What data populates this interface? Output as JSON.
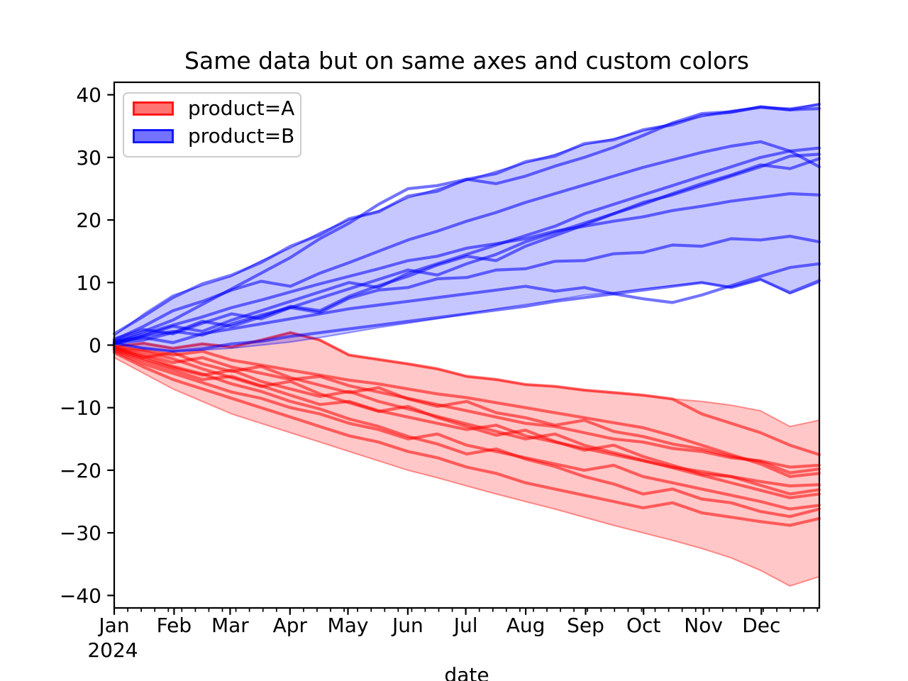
{
  "title": "Same data but on same axes and custom colors",
  "xlabel": "date",
  "legend": {
    "items": [
      {
        "label": "product=A",
        "fill_color": "rgba(255,0,0,0.55)",
        "edge_color": "rgba(255,0,0,0.8)"
      },
      {
        "label": "product=B",
        "fill_color": "rgba(0,0,255,0.55)",
        "edge_color": "rgba(0,0,255,0.8)"
      }
    ]
  },
  "axes": {
    "year_label": "2024",
    "y_ticks": [
      {
        "label": "40",
        "value": 40
      },
      {
        "label": "30",
        "value": 30
      },
      {
        "label": "20",
        "value": 20
      },
      {
        "label": "10",
        "value": 10
      },
      {
        "label": "0",
        "value": 0
      },
      {
        "label": "−10",
        "value": -10
      },
      {
        "label": "−20",
        "value": -20
      },
      {
        "label": "−30",
        "value": -30
      },
      {
        "label": "−40",
        "value": -40
      }
    ],
    "x_ticks": [
      {
        "label": "Jan",
        "day": 0
      },
      {
        "label": "Feb",
        "day": 31
      },
      {
        "label": "Mar",
        "day": 60
      },
      {
        "label": "Apr",
        "day": 91
      },
      {
        "label": "May",
        "day": 121
      },
      {
        "label": "Jun",
        "day": 152
      },
      {
        "label": "Jul",
        "day": 182
      },
      {
        "label": "Aug",
        "day": 213
      },
      {
        "label": "Sep",
        "day": 244
      },
      {
        "label": "Oct",
        "day": 274
      },
      {
        "label": "Nov",
        "day": 305
      },
      {
        "label": "Dec",
        "day": 335
      }
    ]
  },
  "chart_data": {
    "type": "line",
    "title": "Same data but on same axes and custom colors",
    "xlabel": "date",
    "ylabel": "",
    "x_unit": "months since 2024-01-01",
    "xlim": [
      0,
      12
    ],
    "ylim": [
      -42,
      42
    ],
    "grid": false,
    "legend_position": "upper left",
    "x": [
      0,
      0.5,
      1,
      1.5,
      2,
      2.5,
      3,
      3.5,
      4,
      4.5,
      5,
      5.5,
      6,
      6.5,
      7,
      7.5,
      8,
      8.5,
      9,
      9.5,
      10,
      10.5,
      11,
      11.5,
      12
    ],
    "series": [
      {
        "name": "product=A",
        "color": "#ff0000",
        "band_hi": [
          -0.2,
          0.3,
          -0.5,
          0.2,
          -0.3,
          0.8,
          2,
          0.8,
          -1.6,
          -2.3,
          -3,
          -3.8,
          -5,
          -5.5,
          -6.3,
          -6.6,
          -7.2,
          -7.6,
          -8,
          -8.6,
          -9,
          -9.6,
          -10.5,
          -13,
          -12
        ],
        "band_lo": [
          -2,
          -4.5,
          -7,
          -9,
          -11,
          -12.5,
          -14,
          -15.5,
          -17,
          -18.5,
          -20,
          -21.2,
          -22.5,
          -23.8,
          -25,
          -26.2,
          -27.5,
          -28.8,
          -30,
          -31.2,
          -32.5,
          -34,
          -36,
          -38.5,
          -37
        ],
        "lines": [
          [
            -0.2,
            0.3,
            -0.5,
            0.2,
            -0.3,
            0.8,
            2,
            0.8,
            -1.6,
            -2.3,
            -3,
            -3.8,
            -5,
            -5.5,
            -6.3,
            -6.6,
            -7.2,
            -7.6,
            -8,
            -8.6,
            -11,
            -12.5,
            -14,
            -16,
            -17.5
          ],
          [
            -0.5,
            -1.5,
            -2.8,
            -2,
            -3.5,
            -4.5,
            -5.5,
            -5,
            -6.5,
            -7.5,
            -8.5,
            -9.5,
            -10.5,
            -11.5,
            -12.5,
            -13,
            -14,
            -15,
            -15.5,
            -16.5,
            -17,
            -18,
            -18.5,
            -19.5,
            -19.2
          ],
          [
            -0.3,
            -2,
            -1.2,
            -3,
            -4.2,
            -3.4,
            -5.2,
            -6.4,
            -7.6,
            -6.8,
            -8.6,
            -9.8,
            -9,
            -10.8,
            -11.6,
            -12.8,
            -12,
            -13.8,
            -14.6,
            -15.8,
            -16.6,
            -17.8,
            -18.6,
            -20.4,
            -19.8
          ],
          [
            -0.8,
            -2.5,
            -4,
            -5.5,
            -5,
            -6.5,
            -8,
            -9.5,
            -9,
            -10.5,
            -11.5,
            -12.5,
            -13.5,
            -12.8,
            -14.5,
            -15.5,
            -16.5,
            -17.5,
            -18.5,
            -19.5,
            -20.2,
            -21,
            -21.8,
            -22.5,
            -22.3
          ],
          [
            -0.4,
            -1,
            -2.2,
            -3.8,
            -5.2,
            -6.6,
            -5.8,
            -7.8,
            -9.2,
            -10.6,
            -9.8,
            -11.6,
            -13,
            -14.4,
            -13.6,
            -15.4,
            -16.8,
            -16,
            -17.8,
            -19.2,
            -20.6,
            -21,
            -22.4,
            -23.8,
            -23.1
          ],
          [
            -1,
            -3,
            -4.5,
            -6,
            -7.5,
            -8.5,
            -10,
            -11,
            -12.5,
            -13.5,
            -15,
            -14.2,
            -16,
            -17,
            -18,
            -19,
            -20,
            -19.2,
            -21,
            -22,
            -23,
            -24,
            -25,
            -26.2,
            -25.6
          ],
          [
            -0.6,
            -1.8,
            -3.4,
            -4.6,
            -6.2,
            -7.4,
            -9,
            -10.2,
            -11.8,
            -13,
            -14.6,
            -15.8,
            -17.4,
            -16.6,
            -18.2,
            -19.4,
            -21,
            -22.2,
            -23.8,
            -23,
            -24.6,
            -25.2,
            -26.6,
            -27.4,
            -26.2
          ],
          [
            -1.2,
            -3.5,
            -5.5,
            -7,
            -8.5,
            -10,
            -11.5,
            -13,
            -14.5,
            -15.5,
            -17,
            -18,
            -19.5,
            -20.5,
            -22,
            -23,
            -24,
            -25,
            -26,
            -25.2,
            -26.8,
            -27.5,
            -28.2,
            -28.8,
            -27.7
          ],
          [
            -0.2,
            -0.8,
            -1.6,
            -1,
            -2.4,
            -3.2,
            -4,
            -4.8,
            -5.6,
            -6.2,
            -7,
            -7.8,
            -8.4,
            -9.2,
            -10,
            -10.8,
            -11.6,
            -12.4,
            -13.2,
            -14.5,
            -16,
            -17.5,
            -19,
            -21,
            -20.5
          ],
          [
            -0.7,
            -2.2,
            -3.6,
            -4.8,
            -4,
            -5.8,
            -7,
            -8.2,
            -7.4,
            -9,
            -10.2,
            -11.4,
            -12.6,
            -13.8,
            -15,
            -14.2,
            -16,
            -17.2,
            -18.4,
            -19.6,
            -20.8,
            -22,
            -23.2,
            -24.4,
            -23.8
          ]
        ]
      },
      {
        "name": "product=B",
        "color": "#0000ff",
        "band_hi": [
          1.5,
          5,
          8,
          9.5,
          11,
          13.5,
          15.5,
          18,
          20,
          21.5,
          23.5,
          25,
          26.3,
          27.8,
          29.1,
          30.5,
          32,
          33,
          34.2,
          35.5,
          36.5,
          37.5,
          38.1,
          37.9,
          38.5
        ],
        "band_lo": [
          0.3,
          -0.5,
          -1,
          -0.8,
          -0.5,
          0,
          0.5,
          1.2,
          2,
          2.8,
          3.5,
          4.2,
          5,
          5.8,
          6.5,
          7.2,
          8,
          8.4,
          9,
          9.5,
          10,
          9.2,
          10.5,
          8.2,
          10
        ],
        "lines": [
          [
            0.5,
            2.2,
            4,
            6.5,
            9,
            11.5,
            14,
            17,
            19.5,
            22.5,
            25,
            25.5,
            26.5,
            25.8,
            27,
            28.6,
            30,
            31.6,
            33.5,
            35.5,
            37,
            37.3,
            38,
            37.6,
            38.5
          ],
          [
            1.8,
            4.6,
            7.6,
            9.8,
            11.2,
            13.2,
            15.8,
            17.6,
            20.2,
            21.3,
            23.8,
            24.6,
            26.5,
            27.4,
            29.3,
            30.2,
            32.2,
            32.8,
            34.4,
            35.2,
            36.7,
            37.2,
            38.1,
            37.6,
            37.8
          ],
          [
            0.2,
            1.5,
            3,
            2.2,
            4,
            5.5,
            7,
            8.5,
            10,
            9.2,
            11.5,
            13,
            14.5,
            16,
            17.5,
            19,
            21,
            22.5,
            24,
            25.5,
            27,
            28.5,
            30,
            31,
            31.5
          ],
          [
            1,
            2.5,
            1.8,
            3.5,
            5,
            4.2,
            6,
            7.5,
            9,
            10.5,
            12,
            11.2,
            13,
            14.5,
            16.5,
            18,
            19.5,
            21,
            22.8,
            24,
            25.5,
            27,
            28.5,
            30.2,
            30.5
          ],
          [
            0.3,
            0.8,
            2,
            3.8,
            3,
            4.5,
            6.2,
            5.5,
            7.8,
            9.5,
            11,
            12.8,
            14.2,
            13.5,
            15.8,
            17.5,
            19.2,
            21,
            22.5,
            24.2,
            25.8,
            27.2,
            28.8,
            28.2,
            29.8
          ],
          [
            0.8,
            3,
            5.5,
            7,
            8.8,
            10.2,
            9.4,
            11.5,
            13.2,
            15,
            16.8,
            18.2,
            19.8,
            21.2,
            22.8,
            24.2,
            25.6,
            27,
            28.4,
            29.6,
            30.8,
            31.8,
            32.5,
            31,
            28.5
          ],
          [
            0.5,
            1.8,
            3.2,
            4.5,
            6,
            7.2,
            8.5,
            9.8,
            11,
            12.2,
            13.5,
            14.2,
            15.5,
            16.2,
            17,
            18.2,
            19,
            19.8,
            20.5,
            21.5,
            22.2,
            23,
            23.6,
            24.2,
            24
          ],
          [
            0.2,
            1.4,
            2.2,
            1.6,
            3.4,
            4.8,
            6,
            5.2,
            7.5,
            8.8,
            9.2,
            10.6,
            10.8,
            12,
            12.2,
            13.4,
            13.5,
            14.6,
            14.8,
            16,
            15.8,
            17,
            16.8,
            17.4,
            16.5
          ],
          [
            0.6,
            1.2,
            0.4,
            1.8,
            2.6,
            3.4,
            4.2,
            5,
            5.8,
            6.4,
            7,
            7.6,
            8.2,
            8.8,
            9.4,
            8.6,
            9.2,
            8.2,
            7.4,
            6.8,
            8,
            9.5,
            11,
            12.4,
            13
          ],
          [
            0.3,
            -0.5,
            -1,
            -0.6,
            0.2,
            0.6,
            1.4,
            2,
            2.6,
            3.2,
            3.8,
            4.4,
            5,
            5.6,
            6.2,
            7,
            7.6,
            8.2,
            8.8,
            9.4,
            10,
            9.2,
            10.5,
            8.4,
            10.3
          ]
        ]
      }
    ]
  }
}
